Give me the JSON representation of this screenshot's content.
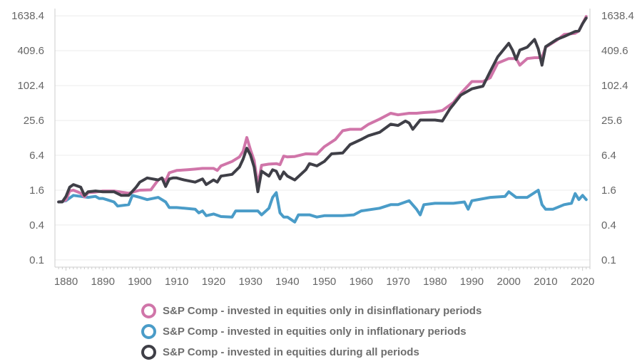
{
  "chart_data": {
    "type": "line",
    "title": "",
    "xlabel": "",
    "ylabel": "",
    "y_scale": "log",
    "xlim": [
      1877,
      2022
    ],
    "ylim": [
      0.075,
      1900
    ],
    "grid": true,
    "x_ticks": [
      "1880",
      "1890",
      "1900",
      "1910",
      "1920",
      "1930",
      "1940",
      "1950",
      "1960",
      "1970",
      "1980",
      "1990",
      "2000",
      "2010",
      "2020"
    ],
    "y_ticks": [
      0.1,
      0.4,
      1.6,
      6.4,
      25.6,
      102.4,
      409.6,
      1638.4
    ],
    "y_tick_labels": [
      "0.1",
      "0.4",
      "1.6",
      "6.4",
      "25.6",
      "102.4",
      "409.6",
      "1638.4"
    ],
    "legend_position": "bottom",
    "series": [
      {
        "name": "S&P Comp - invested in equities only in disinflationary periods",
        "color": "#d075a9",
        "x": [
          1878,
          1879,
          1880,
          1881,
          1882,
          1884,
          1885,
          1886,
          1888,
          1890,
          1893,
          1895,
          1897,
          1900,
          1903,
          1905,
          1906,
          1907,
          1908,
          1910,
          1913,
          1915,
          1917,
          1920,
          1921,
          1922,
          1925,
          1927,
          1928,
          1929,
          1930,
          1931,
          1932,
          1933,
          1935,
          1937,
          1938,
          1939,
          1940,
          1942,
          1945,
          1948,
          1950,
          1953,
          1955,
          1957,
          1960,
          1962,
          1965,
          1968,
          1970,
          1973,
          1975,
          1977,
          1980,
          1982,
          1985,
          1987,
          1990,
          1993,
          1995,
          1997,
          2000,
          2002,
          2003,
          2005,
          2007,
          2009,
          2010,
          2013,
          2015,
          2018,
          2019,
          2020,
          2021
        ],
        "values": [
          1.0,
          1.02,
          1.08,
          1.55,
          1.6,
          1.42,
          1.22,
          1.45,
          1.48,
          1.55,
          1.55,
          1.48,
          1.42,
          1.6,
          1.62,
          2.4,
          2.6,
          2.3,
          3.2,
          3.5,
          3.6,
          3.7,
          3.8,
          3.8,
          3.5,
          4.2,
          5.0,
          6.0,
          7.5,
          13.0,
          8.0,
          5.2,
          1.95,
          4.3,
          4.5,
          4.6,
          4.4,
          6.2,
          6.0,
          6.1,
          6.8,
          6.7,
          9.0,
          12.0,
          17.0,
          18.0,
          18.0,
          22.0,
          27.0,
          34.0,
          32.0,
          34.0,
          34.0,
          35.0,
          36.0,
          38.0,
          52.0,
          75.0,
          120.0,
          120.0,
          140.0,
          250.0,
          300.0,
          300.0,
          230.0,
          300.0,
          310.0,
          310.0,
          470.0,
          620.0,
          780.0,
          820.0,
          900.0,
          1200.0,
          1600.0
        ]
      },
      {
        "name": "S&P Comp - invested in equities only in inflationary periods",
        "color": "#4a9cc8",
        "x": [
          1878,
          1880,
          1882,
          1884,
          1886,
          1888,
          1889,
          1890,
          1891,
          1893,
          1894,
          1897,
          1898,
          1900,
          1902,
          1905,
          1907,
          1908,
          1910,
          1912,
          1915,
          1916,
          1917,
          1918,
          1920,
          1922,
          1925,
          1926,
          1930,
          1932,
          1933,
          1935,
          1936,
          1937,
          1938,
          1939,
          1940,
          1942,
          1943,
          1946,
          1948,
          1950,
          1955,
          1958,
          1960,
          1965,
          1968,
          1970,
          1973,
          1975,
          1976,
          1977,
          1980,
          1985,
          1988,
          1989,
          1990,
          1995,
          1999,
          2000,
          2002,
          2005,
          2008,
          2009,
          2010,
          2012,
          2015,
          2017,
          2018,
          2019,
          2020,
          2021
        ],
        "values": [
          1.0,
          1.05,
          1.3,
          1.25,
          1.2,
          1.25,
          1.15,
          1.15,
          1.1,
          1.0,
          0.85,
          0.9,
          1.3,
          1.2,
          1.1,
          1.2,
          1.0,
          0.8,
          0.8,
          0.78,
          0.75,
          0.65,
          0.7,
          0.58,
          0.62,
          0.56,
          0.55,
          0.7,
          0.7,
          0.7,
          0.6,
          0.78,
          1.2,
          1.45,
          0.65,
          0.55,
          0.55,
          0.45,
          0.6,
          0.6,
          0.55,
          0.58,
          0.58,
          0.6,
          0.7,
          0.78,
          0.9,
          0.9,
          1.05,
          0.75,
          0.6,
          0.9,
          0.95,
          0.95,
          1.0,
          0.75,
          1.05,
          1.2,
          1.25,
          1.5,
          1.2,
          1.2,
          1.6,
          0.9,
          0.75,
          0.75,
          0.9,
          0.95,
          1.4,
          1.1,
          1.3,
          1.1
        ]
      },
      {
        "name": "S&P Comp - invested in equities during all periods",
        "color": "#3f3f47",
        "x": [
          1878,
          1879,
          1880,
          1881,
          1882,
          1884,
          1885,
          1886,
          1888,
          1890,
          1893,
          1895,
          1897,
          1899,
          1900,
          1902,
          1905,
          1906,
          1907,
          1908,
          1909,
          1910,
          1912,
          1915,
          1917,
          1918,
          1920,
          1921,
          1922,
          1925,
          1927,
          1928,
          1929,
          1930,
          1931,
          1932,
          1933,
          1935,
          1936,
          1937,
          1938,
          1939,
          1940,
          1942,
          1945,
          1946,
          1948,
          1950,
          1952,
          1955,
          1957,
          1960,
          1962,
          1965,
          1968,
          1970,
          1972,
          1973,
          1974,
          1976,
          1980,
          1982,
          1984,
          1987,
          1990,
          1993,
          1995,
          1997,
          2000,
          2001,
          2002,
          2003,
          2005,
          2007,
          2008,
          2009,
          2010,
          2013,
          2015,
          2018,
          2019,
          2020,
          2021
        ],
        "values": [
          1.0,
          1.0,
          1.25,
          1.8,
          2.0,
          1.8,
          1.3,
          1.5,
          1.55,
          1.5,
          1.5,
          1.3,
          1.3,
          1.8,
          2.2,
          2.6,
          2.4,
          2.6,
          1.85,
          2.5,
          2.6,
          2.6,
          2.4,
          2.2,
          2.5,
          2.0,
          2.4,
          2.2,
          2.8,
          3.0,
          4.0,
          5.5,
          8.5,
          6.5,
          4.0,
          1.5,
          3.4,
          2.8,
          3.6,
          3.4,
          2.5,
          3.3,
          2.8,
          2.4,
          3.6,
          4.6,
          4.2,
          5.0,
          6.8,
          7.0,
          9.8,
          12.0,
          14.0,
          16.0,
          22.0,
          21.0,
          25.0,
          23.0,
          18.0,
          26.0,
          26.0,
          25.0,
          40.0,
          70.0,
          90.0,
          100.0,
          180.0,
          320.0,
          550.0,
          420.0,
          290.0,
          420.0,
          470.0,
          640.0,
          440.0,
          230.0,
          480.0,
          640.0,
          720.0,
          880.0,
          900.0,
          1200.0,
          1500.0
        ]
      }
    ]
  },
  "legend": {
    "items": [
      {
        "label": "S&P Comp - invested in equities only in disinflationary periods",
        "color": "#d075a9"
      },
      {
        "label": "S&P Comp - invested in equities only in inflationary periods",
        "color": "#4a9cc8"
      },
      {
        "label": "S&P Comp - invested in equities during all periods",
        "color": "#3f3f47"
      }
    ]
  }
}
